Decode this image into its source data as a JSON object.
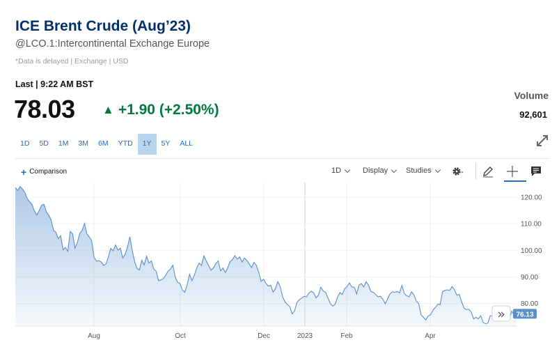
{
  "quote": {
    "title": "ICE Brent Crude (Aug’23)",
    "subtitle": "@LCO.1:Intercontinental Exchange Europe",
    "disclaimer": "*Data is delayed | Exchange | USD",
    "last_label": "Last | 9:22 AM BST",
    "price": "78.03",
    "change_arrow": "▲",
    "change": "+1.90 (+2.50%)",
    "change_color": "#007a3d",
    "volume_label": "Volume",
    "volume": "92,601"
  },
  "ranges": {
    "items": [
      "1D",
      "5D",
      "1M",
      "3M",
      "6M",
      "YTD",
      "1Y",
      "5Y",
      "ALL"
    ],
    "active": "1Y"
  },
  "toolbar": {
    "comparison_plus": "+",
    "comparison": "Comparison",
    "interval": "1D",
    "display": "Display",
    "studies": "Studies",
    "icons": [
      "gear-icon",
      "pencil-icon",
      "crosshair-icon",
      "comment-icon",
      "expand-icon"
    ]
  },
  "chart_data": {
    "type": "area",
    "title": "",
    "xlabel": "",
    "ylabel": "",
    "x_tick_labels": [
      "Aug",
      "Oct",
      "Dec",
      "2023",
      "Feb",
      "Apr"
    ],
    "y_tick_labels": [
      "120.00",
      "110.00",
      "100.00",
      "90.00",
      "80.00"
    ],
    "ylim": [
      71.5,
      125.5
    ],
    "grid": true,
    "line_color": "#5b8fc9",
    "fill_color": "#a9c6e5",
    "last_value_label": "76.13",
    "scroll_button": "»",
    "series": [
      {
        "values": [
          123.6,
          122.5,
          124.0,
          123.1,
          121.8,
          119.5,
          118.3,
          117.2,
          114.8,
          113.3,
          115.0,
          116.9,
          117.3,
          114.5,
          113.2,
          111.4,
          107.5,
          106.8,
          104.4,
          105.5,
          100.2,
          101.1,
          99.6,
          107.1,
          106.2,
          100.8,
          102.9,
          106.4,
          107.5,
          110.1,
          106.1,
          105.0,
          103.6,
          97.4,
          95.9,
          96.1,
          95.6,
          94.3,
          94.9,
          97.5,
          100.7,
          99.8,
          102.0,
          100.1,
          100.8,
          97.1,
          98.5,
          101.2,
          105.1,
          99.9,
          95.8,
          93.1,
          92.6,
          96.3,
          94.5,
          97.8,
          95.2,
          96.0,
          93.0,
          92.1,
          88.6,
          88.8,
          89.4,
          90.6,
          92.1,
          93.0,
          94.4,
          90.0,
          88.0,
          87.5,
          85.1,
          84.2,
          87.1,
          91.0,
          88.6,
          90.6,
          93.3,
          95.2,
          94.3,
          97.9,
          96.0,
          94.3,
          92.5,
          93.3,
          95.0,
          96.0,
          92.3,
          93.3,
          91.6,
          93.4,
          95.8,
          96.5,
          98.0,
          96.7,
          97.5,
          95.6,
          97.1,
          96.2,
          94.9,
          93.5,
          95.5,
          94.3,
          91.7,
          88.3,
          89.1,
          87.6,
          86.5,
          86.8,
          84.3,
          85.6,
          88.2,
          86.3,
          82.5,
          80.6,
          79.6,
          78.8,
          76.1,
          77.2,
          80.4,
          81.4,
          82.0,
          82.7,
          82.5,
          83.9,
          84.6,
          84.0,
          82.1,
          83.1,
          86.1,
          84.7,
          84.2,
          82.0,
          80.0,
          79.0,
          79.7,
          82.4,
          84.1,
          83.4,
          85.5,
          86.4,
          87.7,
          86.2,
          86.1,
          83.6,
          86.9,
          87.5,
          86.2,
          88.2,
          86.8,
          84.5,
          84.2,
          83.4,
          82.5,
          82.7,
          81.6,
          79.9,
          81.8,
          83.6,
          84.4,
          84.2,
          84.5,
          84.0,
          86.8,
          83.7,
          82.9,
          82.5,
          84.4,
          83.2,
          80.9,
          80.0,
          75.7,
          74.8,
          73.8,
          75.3,
          75.8,
          77.5,
          78.5,
          79.7,
          79.6,
          84.5,
          84.9,
          85.1,
          84.9,
          86.3,
          85.1,
          83.1,
          83.4,
          80.7,
          78.2,
          77.7,
          77.8,
          76.8,
          74.2,
          74.8,
          74.2,
          75.4,
          72.8,
          72.4,
          72.6,
          75.4,
          75.2,
          74.5,
          77.0,
          76.5,
          76.1,
          75.4,
          73.5,
          74.0,
          77.1,
          75.7,
          76.13
        ]
      }
    ]
  }
}
